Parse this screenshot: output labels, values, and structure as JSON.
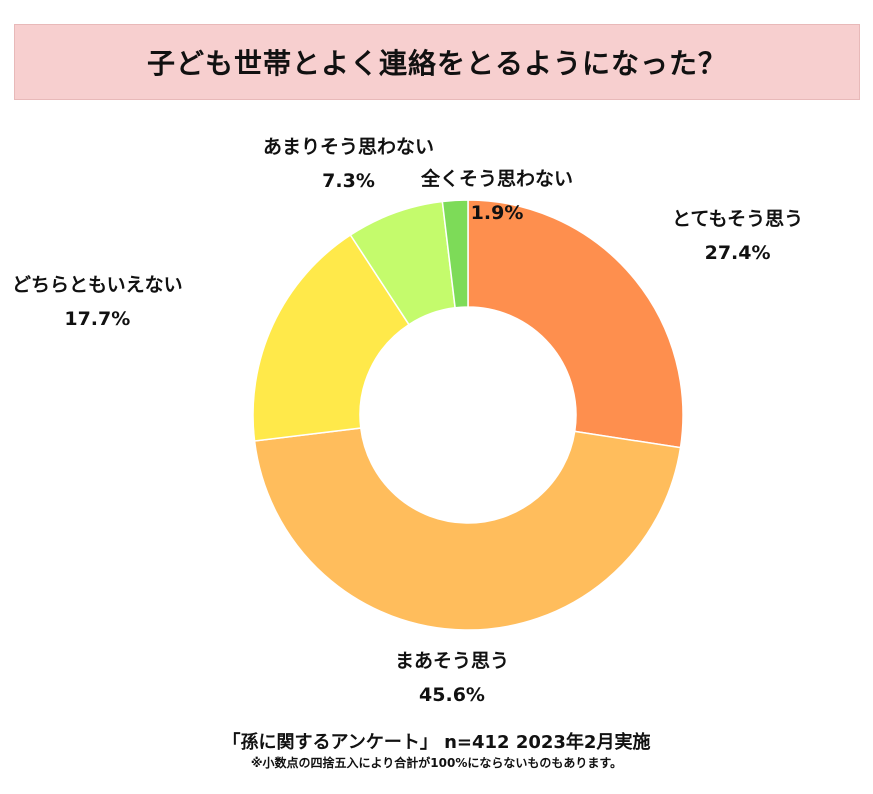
{
  "header": {
    "title": "子ども世帯とよく連絡をとるようになった？"
  },
  "chart_data": {
    "type": "pie",
    "title": "子ども世帯とよく連絡をとるようになった？",
    "donut": true,
    "slices": [
      {
        "label": "とてもそう思う",
        "value": 27.4,
        "value_label": "27.4%",
        "color": "#fe8f4e"
      },
      {
        "label": "まあそう思う",
        "value": 45.6,
        "value_label": "45.6%",
        "color": "#ffbd5c"
      },
      {
        "label": "どちらともいえない",
        "value": 17.7,
        "value_label": "17.7%",
        "color": "#ffe94a"
      },
      {
        "label": "あまりそう思わない",
        "value": 7.3,
        "value_label": "7.3%",
        "color": "#c4fb6c"
      },
      {
        "label": "全くそう思わない",
        "value": 1.9,
        "value_label": "1.9%",
        "color": "#7ddb58"
      }
    ]
  },
  "footer": {
    "source": "「孫に関するアンケート」 n=412 2023年2月実施",
    "note": "※小数点の四捨五入により合計が100%にならないものもあります。"
  }
}
